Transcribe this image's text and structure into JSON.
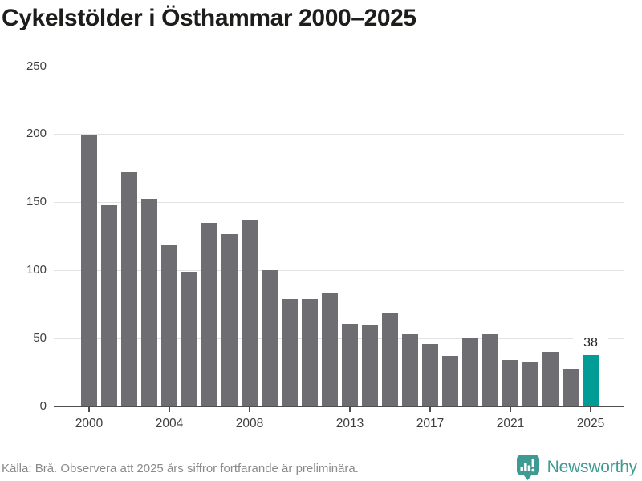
{
  "title": "Cykelstölder i Östhammar 2000–2025",
  "chart_data": {
    "type": "bar",
    "title": "Cykelstölder i Östhammar 2000–2025",
    "x": [
      2000,
      2001,
      2002,
      2003,
      2004,
      2005,
      2006,
      2007,
      2008,
      2009,
      2010,
      2011,
      2012,
      2013,
      2014,
      2015,
      2016,
      2017,
      2018,
      2019,
      2020,
      2021,
      2022,
      2023,
      2024,
      2025
    ],
    "values": [
      200,
      148,
      172,
      153,
      119,
      99,
      135,
      127,
      137,
      100,
      79,
      79,
      83,
      61,
      60,
      69,
      53,
      46,
      37,
      51,
      53,
      34,
      33,
      40,
      28,
      38
    ],
    "highlight": {
      "year": 2025,
      "value": 38,
      "label": "38"
    },
    "y_ticks": [
      0,
      50,
      100,
      150,
      200,
      250
    ],
    "x_tick_years": [
      2000,
      2004,
      2008,
      2013,
      2017,
      2021,
      2025
    ],
    "ylim": [
      0,
      250
    ],
    "grid": true,
    "legend": "none",
    "xlabel": "",
    "ylabel": "",
    "bar_color": "#6e6d72",
    "highlight_color": "#009c95"
  },
  "footer": {
    "source": "Källa: Brå. Observera att 2025 års siffror fortfarande är preliminära.",
    "brand": "Newsworthy",
    "logo_icon": "newsworthy-speech-bubble-bar-chart-icon"
  },
  "colors": {
    "background": "#ffffff",
    "title_text": "#1d1d1b",
    "grid": "#e2e2e2",
    "axis": "#4d4d4d",
    "tick_label": "#3f3f3f",
    "bar": "#6e6d72",
    "highlight": "#009c95",
    "value_label": "#1f1f1f",
    "footer_text": "#8a8a8a",
    "brand_teal": "#3f9a93"
  }
}
